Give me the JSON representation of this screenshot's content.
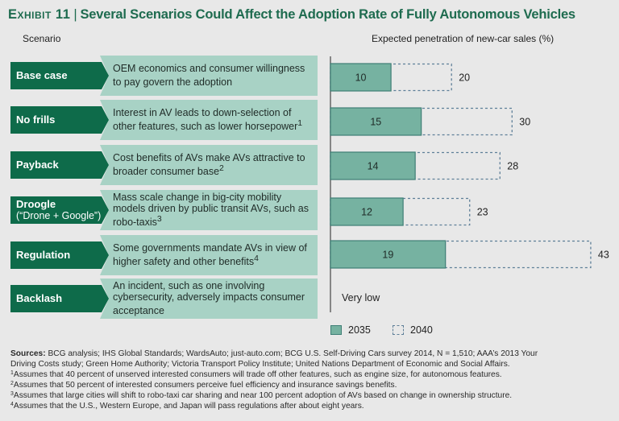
{
  "header": {
    "exhibit": "Exhibit 11",
    "separator": "|",
    "title": "Several Scenarios Could Affect the Adoption Rate of Fully Autonomous Vehicles"
  },
  "columns": {
    "scenario": "Scenario",
    "chart": "Expected penetration of new-car sales (%)"
  },
  "scenarios": [
    {
      "label": "Base case",
      "sublabel": "",
      "description": "OEM economics and consumer willingness to pay govern the adoption",
      "footnote": ""
    },
    {
      "label": "No frills",
      "sublabel": "",
      "description": "Interest in AV leads to down-selection of other features, such as lower horsepower",
      "footnote": "1"
    },
    {
      "label": "Payback",
      "sublabel": "",
      "description": "Cost benefits of AVs make AVs attractive to broader consumer base",
      "footnote": "2"
    },
    {
      "label": "Droogle",
      "sublabel": "(“Drone + Google”)",
      "description": "Mass scale change in big-city mobility models driven by public transit AVs, such as robo-taxis",
      "footnote": "3"
    },
    {
      "label": "Regulation",
      "sublabel": "",
      "description": "Some governments mandate AVs in view of higher safety and other benefits",
      "footnote": "4"
    },
    {
      "label": "Backlash",
      "sublabel": "",
      "description": "An incident, such as one involving cybersecurity, adversely impacts consumer acceptance",
      "footnote": ""
    }
  ],
  "chart_data": {
    "type": "bar",
    "orientation": "horizontal",
    "title": "Expected penetration of new-car sales (%)",
    "xlabel": "",
    "ylabel": "Scenario",
    "categories": [
      "Base case",
      "No frills",
      "Payback",
      "Droogle",
      "Regulation",
      "Backlash"
    ],
    "series": [
      {
        "name": "2035",
        "style": "solid",
        "values": [
          10,
          15,
          14,
          12,
          19,
          null
        ]
      },
      {
        "name": "2040",
        "style": "dashed-outline",
        "values": [
          20,
          30,
          28,
          23,
          43,
          null
        ]
      }
    ],
    "annotations": [
      {
        "category": "Backlash",
        "text": "Very low"
      }
    ],
    "xlim": [
      0,
      45
    ],
    "grid": false,
    "legend": "bottom-left",
    "colors": {
      "2035_fill": "#76b2a1",
      "2035_edge": "#3f7f76",
      "2040_edge": "#5e7f98",
      "axis": "#666666"
    }
  },
  "legend": [
    {
      "name": "2035",
      "style": "solid"
    },
    {
      "name": "2040",
      "style": "dashed"
    }
  ],
  "notes": {
    "sources_label": "Sources:",
    "sources": "BCG analysis; IHS Global Standards; WardsAuto; just-auto.com; BCG U.S. Self-Driving Cars survey 2014, N = 1,510; AAA’s 2013 Your",
    "sources_line2": "Driving Costs study; Green Home Authority; Victoria Transport Policy Institute; United Nations Department of Economic and Social Affairs.",
    "footnotes": [
      {
        "mark": "1",
        "text": "Assumes that 40 percent of unserved interested consumers will trade off other features, such as engine size, for autonomous features."
      },
      {
        "mark": "2",
        "text": "Assumes that 50 percent of interested consumers perceive fuel efficiency and insurance savings benefits."
      },
      {
        "mark": "3",
        "text": "Assumes that large cities will shift to robo-taxi car sharing and near 100 percent adoption of AVs based on change in ownership structure."
      },
      {
        "mark": "4",
        "text": "Assumes that the U.S., Western Europe, and Japan will pass regulations after about eight years."
      }
    ]
  }
}
